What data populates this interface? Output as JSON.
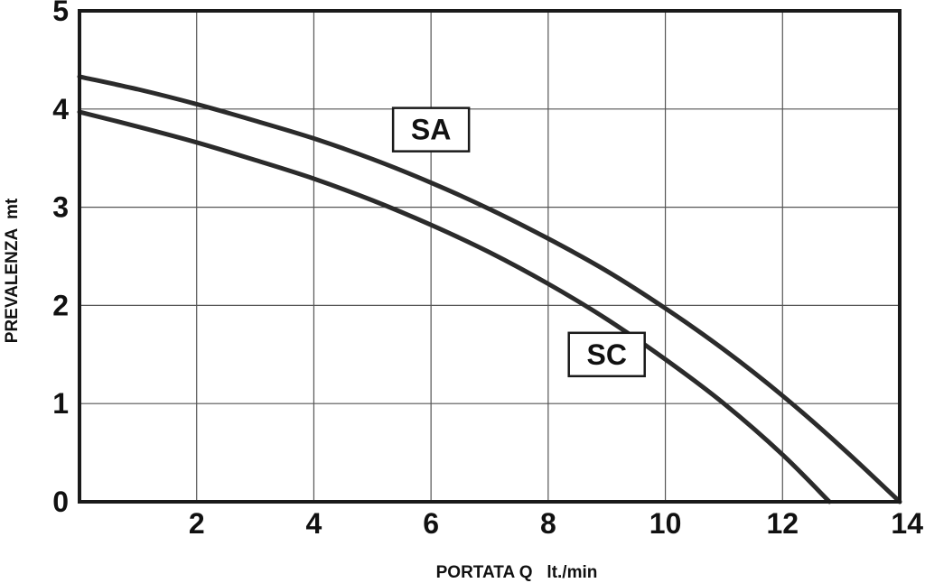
{
  "chart_data": {
    "type": "line",
    "xlabel": "PORTATA Q   lt./min",
    "ylabel": "PREVALENZA  mt",
    "xlim": [
      0,
      14
    ],
    "ylim": [
      0,
      5
    ],
    "x_ticks": [
      "0",
      "2",
      "4",
      "6",
      "8",
      "10",
      "12",
      "14"
    ],
    "y_ticks": [
      "0",
      "1",
      "2",
      "3",
      "4",
      "5"
    ],
    "grid": true,
    "colors": {
      "line": "#2b2b2b",
      "grid": "#555555",
      "frame": "#1a1a1a"
    },
    "series": [
      {
        "name": "SA",
        "x": [
          0,
          1,
          2,
          3,
          4,
          5,
          6,
          7,
          8,
          9,
          10,
          11,
          12,
          13,
          14
        ],
        "y": [
          4.33,
          4.2,
          4.05,
          3.88,
          3.7,
          3.49,
          3.25,
          2.98,
          2.68,
          2.35,
          1.97,
          1.55,
          1.08,
          0.56,
          0
        ]
      },
      {
        "name": "SC",
        "x": [
          0,
          1,
          2,
          3,
          4,
          5,
          6,
          7,
          8,
          9,
          10,
          11,
          12,
          12.8
        ],
        "y": [
          3.97,
          3.82,
          3.66,
          3.48,
          3.29,
          3.07,
          2.82,
          2.54,
          2.22,
          1.86,
          1.45,
          1.0,
          0.48,
          0
        ]
      }
    ],
    "labels": [
      {
        "text": "SA",
        "x": 6.0,
        "y": 3.79
      },
      {
        "text": "SC",
        "x": 9.0,
        "y": 1.5
      }
    ]
  }
}
